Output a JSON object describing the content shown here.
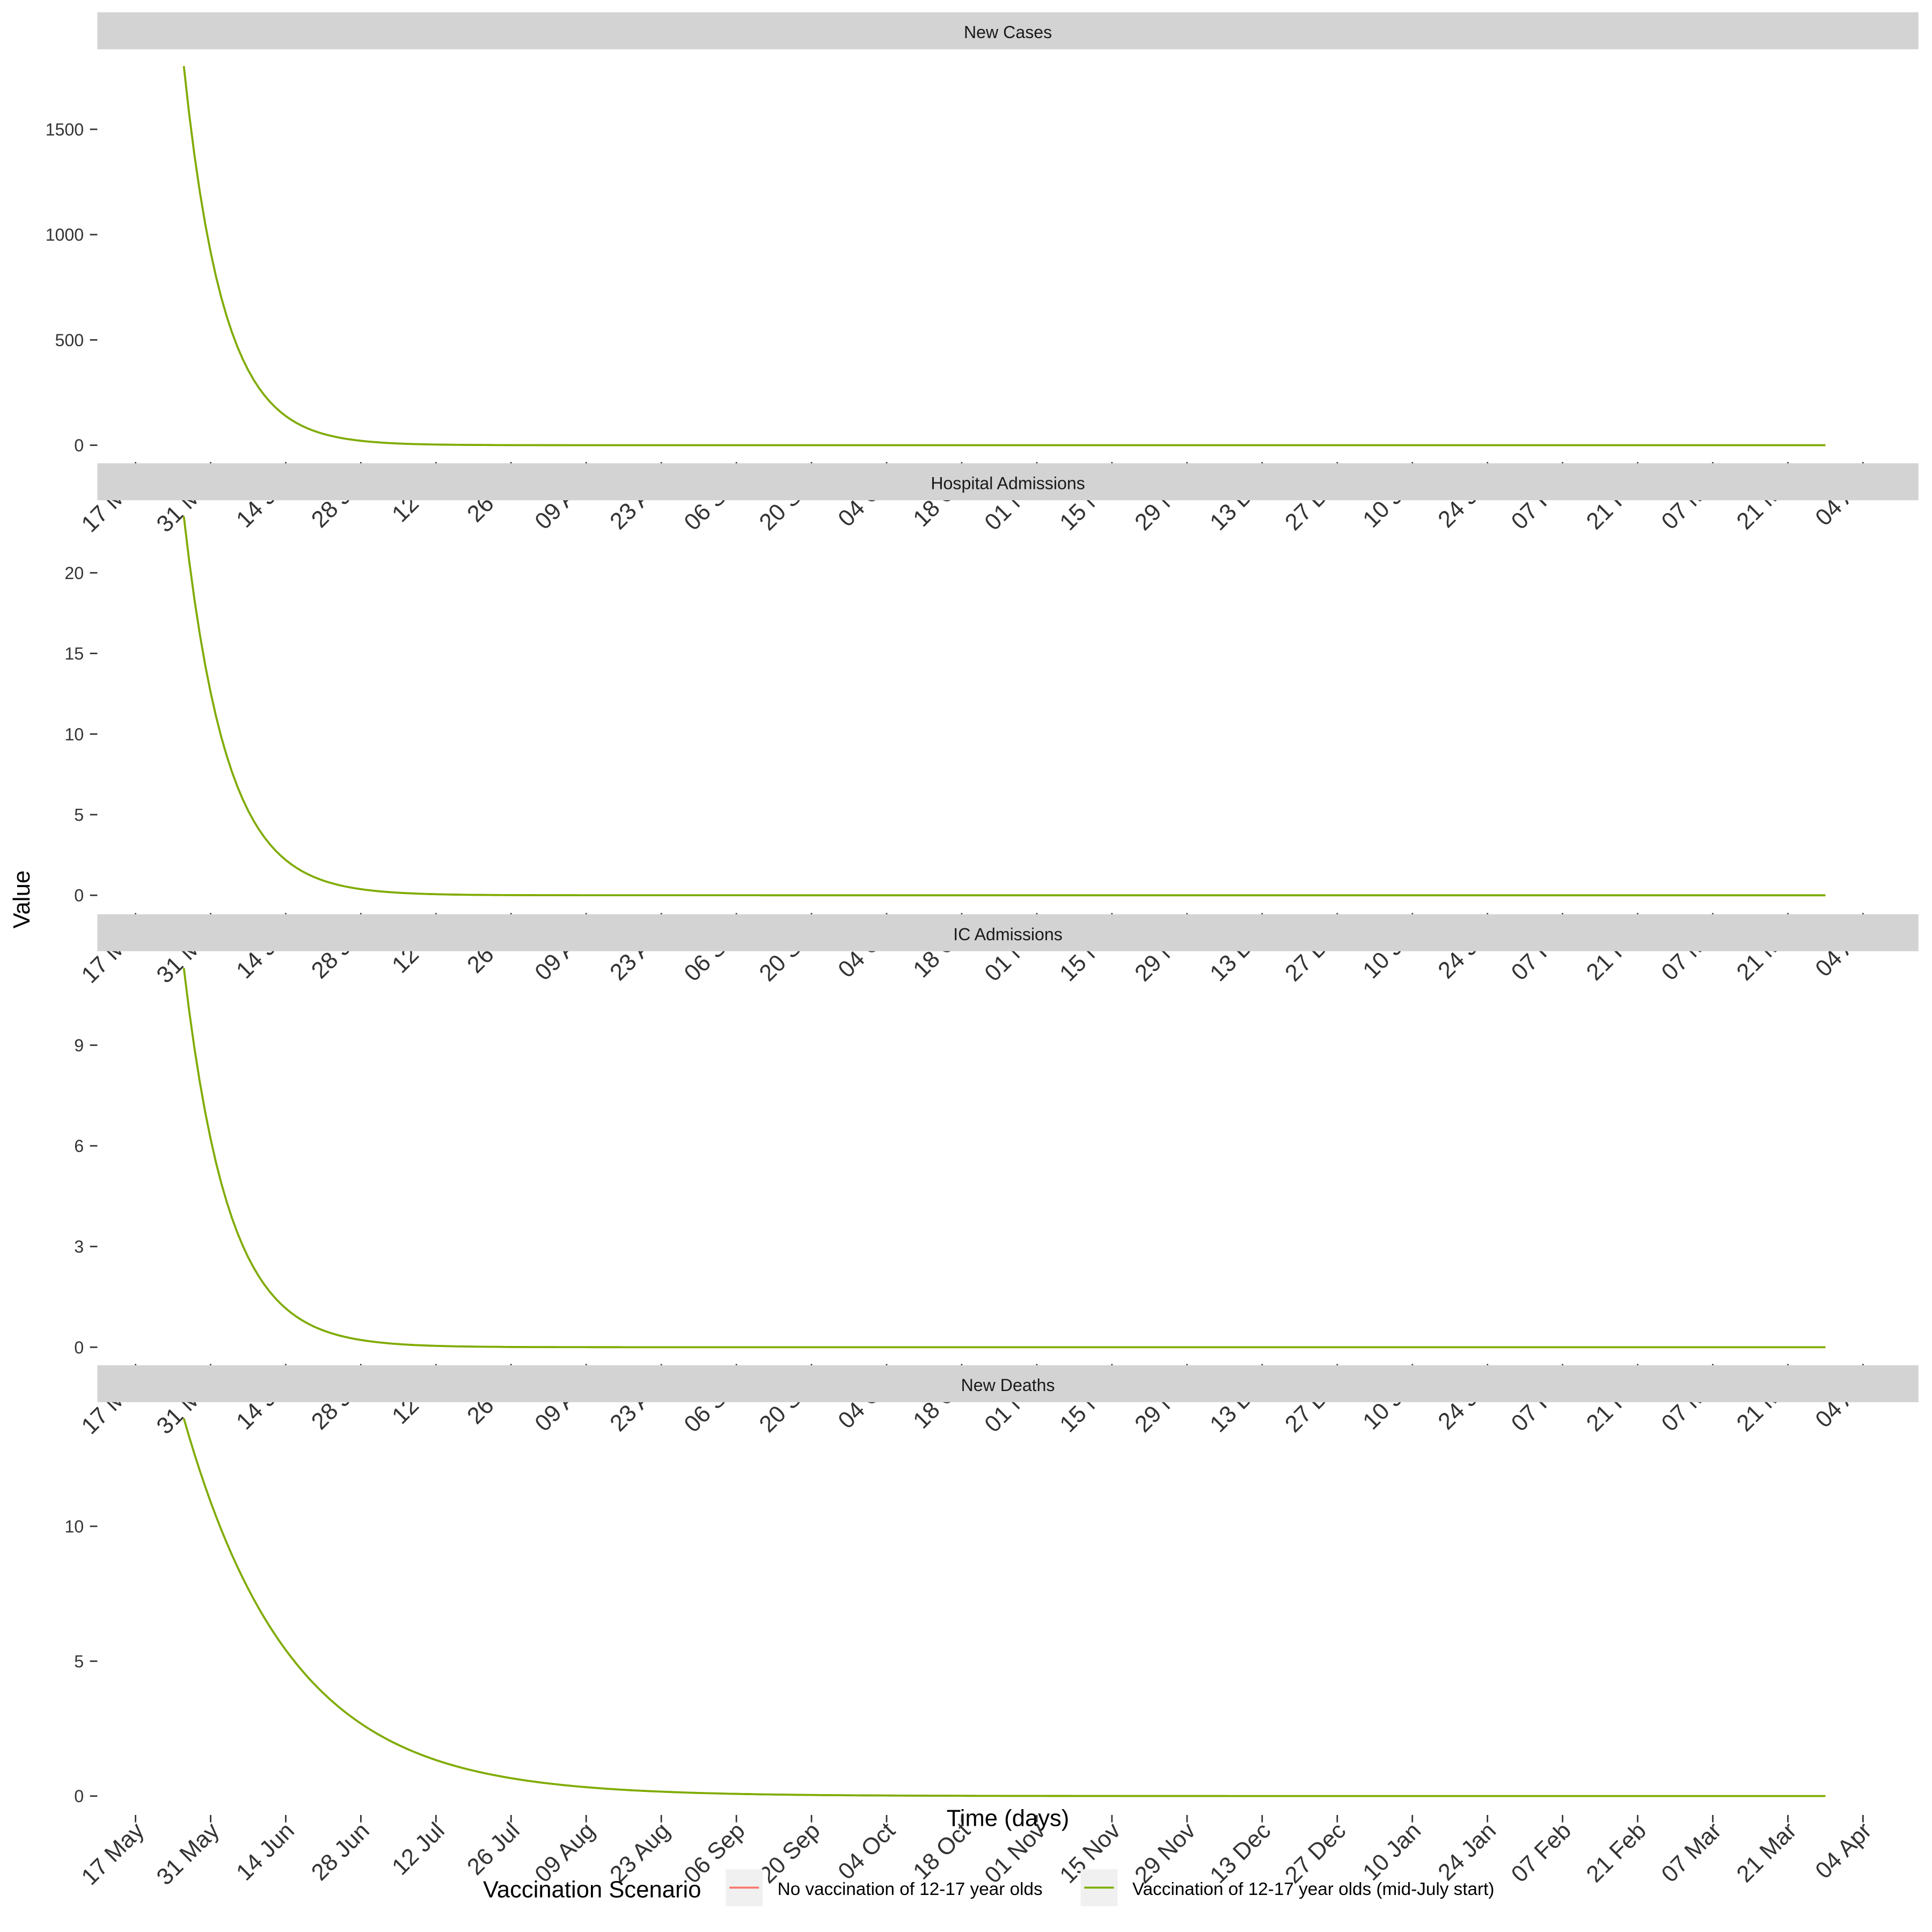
{
  "chart_data": {
    "type": "line",
    "facet_layout": "vertical",
    "y_axis_title": "Value",
    "x_axis_title": "Time (days)",
    "x_range": [
      "2021-05-17",
      "2022-04-04"
    ],
    "x_ticks": [
      "17 May",
      "31 May",
      "14 Jun",
      "28 Jun",
      "12 Jul",
      "26 Jul",
      "09 Aug",
      "23 Aug",
      "06 Sep",
      "20 Sep",
      "04 Oct",
      "18 Oct",
      "01 Nov",
      "15 Nov",
      "29 Nov",
      "13 Dec",
      "27 Dec",
      "10 Jan",
      "24 Jan",
      "07 Feb",
      "21 Feb",
      "07 Mar",
      "21 Mar",
      "04 Apr"
    ],
    "legend": {
      "title": "Vaccination Scenario",
      "position": "bottom",
      "entries": [
        {
          "label": "No vaccination of 12-17 year olds",
          "color": "#F8766D"
        },
        {
          "label": "Vaccination of 12-17 year olds (mid-July start)",
          "color": "#7CAE00"
        }
      ]
    },
    "series_start_day": 9,
    "series_end_day": 315,
    "panels": [
      {
        "title": "New Cases",
        "ylim": [
          -80,
          1880
        ],
        "yticks": [
          0,
          500,
          1000,
          1500
        ],
        "series": [
          {
            "name": "No vaccination of 12-17 year olds",
            "color": "#F8766D",
            "start_value": 1800,
            "decay_rate": 0.135
          },
          {
            "name": "Vaccination of 12-17 year olds (mid-July start)",
            "color": "#7CAE00",
            "start_value": 1800,
            "decay_rate": 0.135
          }
        ]
      },
      {
        "title": "Hospital Admissions",
        "ylim": [
          -1.1,
          24.5
        ],
        "yticks": [
          0,
          5,
          10,
          15,
          20
        ],
        "series": [
          {
            "name": "No vaccination of 12-17 year olds",
            "color": "#F8766D",
            "start_value": 23.5,
            "decay_rate": 0.125
          },
          {
            "name": "Vaccination of 12-17 year olds (mid-July start)",
            "color": "#7CAE00",
            "start_value": 23.5,
            "decay_rate": 0.125
          }
        ]
      },
      {
        "title": "IC Admissions",
        "ylim": [
          -0.5,
          11.8
        ],
        "yticks": [
          0,
          3,
          6,
          9
        ],
        "series": [
          {
            "name": "No vaccination of 12-17 year olds",
            "color": "#F8766D",
            "start_value": 11.3,
            "decay_rate": 0.12
          },
          {
            "name": "Vaccination of 12-17 year olds (mid-July start)",
            "color": "#7CAE00",
            "start_value": 11.3,
            "decay_rate": 0.12
          }
        ]
      },
      {
        "title": "New Deaths",
        "ylim": [
          -0.7,
          14.6
        ],
        "yticks": [
          0,
          5,
          10
        ],
        "series": [
          {
            "name": "No vaccination of 12-17 year olds",
            "color": "#F8766D",
            "start_value": 14,
            "decay_rate": 0.05
          },
          {
            "name": "Vaccination of 12-17 year olds (mid-July start)",
            "color": "#7CAE00",
            "start_value": 14,
            "decay_rate": 0.05
          }
        ]
      }
    ]
  }
}
